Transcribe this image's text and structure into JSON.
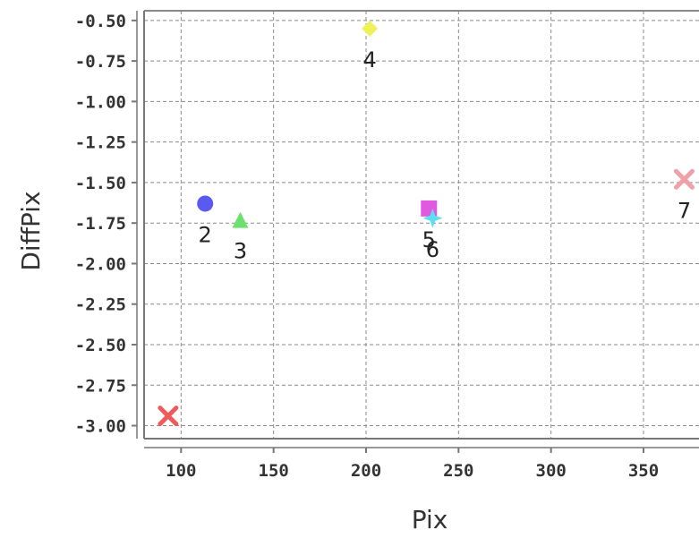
{
  "chart_data": {
    "type": "scatter",
    "title": "",
    "xlabel": "Pix",
    "ylabel": "DiffPix",
    "xlim": [
      80,
      380
    ],
    "ylim": [
      -3.08,
      -0.44
    ],
    "x_ticks": [
      100,
      150,
      200,
      250,
      300,
      350
    ],
    "x_tick_labels": [
      "100",
      "150",
      "200",
      "250",
      "300",
      "350"
    ],
    "y_ticks": [
      -0.5,
      -0.75,
      -1.0,
      -1.25,
      -1.5,
      -1.75,
      -2.0,
      -2.25,
      -2.5,
      -2.75,
      -3.0
    ],
    "y_tick_labels": [
      "-0.50",
      "-0.75",
      "-1.00",
      "-1.25",
      "-1.50",
      "-1.75",
      "-2.00",
      "-2.25",
      "-2.50",
      "-2.75",
      "-3.00"
    ],
    "grid": true,
    "legend": "none",
    "points": [
      {
        "label": "",
        "x": 93,
        "y": -2.94,
        "marker": "x",
        "color": "#f05a5a"
      },
      {
        "label": "2",
        "x": 113,
        "y": -1.63,
        "marker": "circle",
        "color": "#5a5af0"
      },
      {
        "label": "3",
        "x": 132,
        "y": -1.73,
        "marker": "triangle",
        "color": "#6ee06e"
      },
      {
        "label": "4",
        "x": 202,
        "y": -0.55,
        "marker": "diamond",
        "color": "#f0f05a"
      },
      {
        "label": "5",
        "x": 234,
        "y": -1.66,
        "marker": "square",
        "color": "#e05ae0"
      },
      {
        "label": "6",
        "x": 236,
        "y": -1.72,
        "marker": "star",
        "color": "#5ae0f0"
      },
      {
        "label": "7",
        "x": 372,
        "y": -1.48,
        "marker": "x",
        "color": "#f0a0a8"
      }
    ]
  }
}
